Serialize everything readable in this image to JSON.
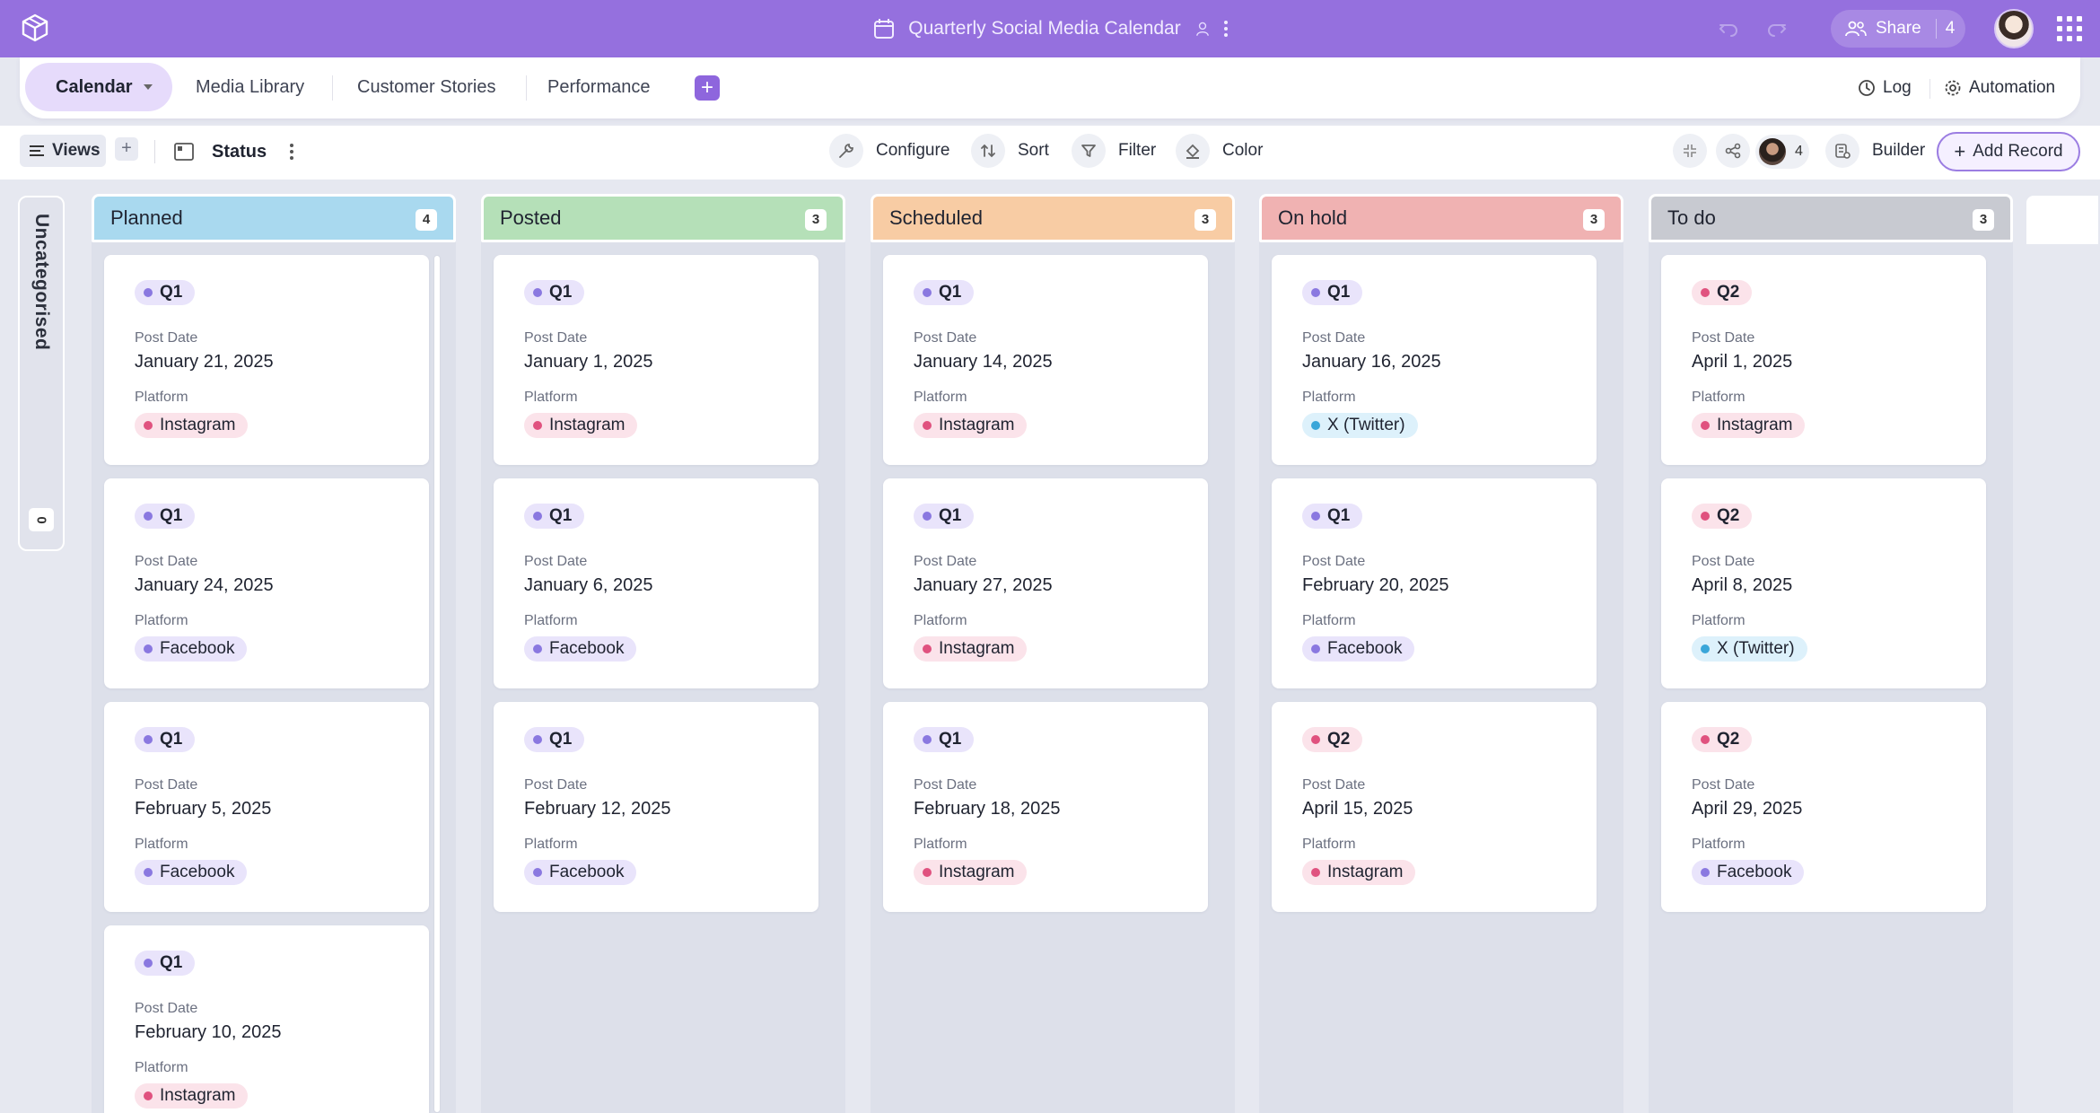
{
  "app": {
    "title": "Quarterly Social Media Calendar",
    "share_label": "Share",
    "share_count": "4"
  },
  "tabs": {
    "active": "Calendar",
    "items": [
      "Media Library",
      "Customer Stories",
      "Performance"
    ],
    "log": "Log",
    "automation": "Automation"
  },
  "toolbar": {
    "views": "Views",
    "status": "Status",
    "configure": "Configure",
    "sort": "Sort",
    "filter": "Filter",
    "color": "Color",
    "collab_count": "4",
    "builder": "Builder",
    "add_record": "Add Record"
  },
  "uncategorised": {
    "label": "Uncategorised",
    "count": "0"
  },
  "labels": {
    "post_date": "Post Date",
    "platform": "Platform"
  },
  "colors": {
    "brand": "#9570de",
    "q1_dot": "#8a78e0",
    "q1_bg": "#e9e4fb",
    "q2_dot": "#e0527f",
    "q2_bg": "#fbe3ea",
    "instagram_dot": "#e0527f",
    "instagram_bg": "#fbe3ea",
    "facebook_dot": "#8a78e0",
    "facebook_bg": "#e9e4fb",
    "twitter_dot": "#3aa6d9",
    "twitter_bg": "#ddf1fb"
  },
  "columns": [
    {
      "name": "Planned",
      "count": "4",
      "color": "#a9d9ef",
      "cards": [
        {
          "quarter": "Q1",
          "date": "January 21, 2025",
          "platform": "Instagram"
        },
        {
          "quarter": "Q1",
          "date": "January 24, 2025",
          "platform": "Facebook"
        },
        {
          "quarter": "Q1",
          "date": "February 5, 2025",
          "platform": "Facebook"
        },
        {
          "quarter": "Q1",
          "date": "February 10, 2025",
          "platform": "Instagram"
        }
      ]
    },
    {
      "name": "Posted",
      "count": "3",
      "color": "#b5e0b8",
      "cards": [
        {
          "quarter": "Q1",
          "date": "January 1, 2025",
          "platform": "Instagram"
        },
        {
          "quarter": "Q1",
          "date": "January 6, 2025",
          "platform": "Facebook"
        },
        {
          "quarter": "Q1",
          "date": "February 12, 2025",
          "platform": "Facebook"
        }
      ]
    },
    {
      "name": "Scheduled",
      "count": "3",
      "color": "#f8cca4",
      "cards": [
        {
          "quarter": "Q1",
          "date": "January 14, 2025",
          "platform": "Instagram"
        },
        {
          "quarter": "Q1",
          "date": "January 27, 2025",
          "platform": "Instagram"
        },
        {
          "quarter": "Q1",
          "date": "February 18, 2025",
          "platform": "Instagram"
        }
      ]
    },
    {
      "name": "On hold",
      "count": "3",
      "color": "#f0b2b2",
      "cards": [
        {
          "quarter": "Q1",
          "date": "January 16, 2025",
          "platform": "X (Twitter)"
        },
        {
          "quarter": "Q1",
          "date": "February 20, 2025",
          "platform": "Facebook"
        },
        {
          "quarter": "Q2",
          "date": "April 15, 2025",
          "platform": "Instagram"
        }
      ]
    },
    {
      "name": "To do",
      "count": "3",
      "color": "#c8cad1",
      "cards": [
        {
          "quarter": "Q2",
          "date": "April 1, 2025",
          "platform": "Instagram"
        },
        {
          "quarter": "Q2",
          "date": "April 8, 2025",
          "platform": "X (Twitter)"
        },
        {
          "quarter": "Q2",
          "date": "April 29, 2025",
          "platform": "Facebook"
        }
      ]
    }
  ]
}
